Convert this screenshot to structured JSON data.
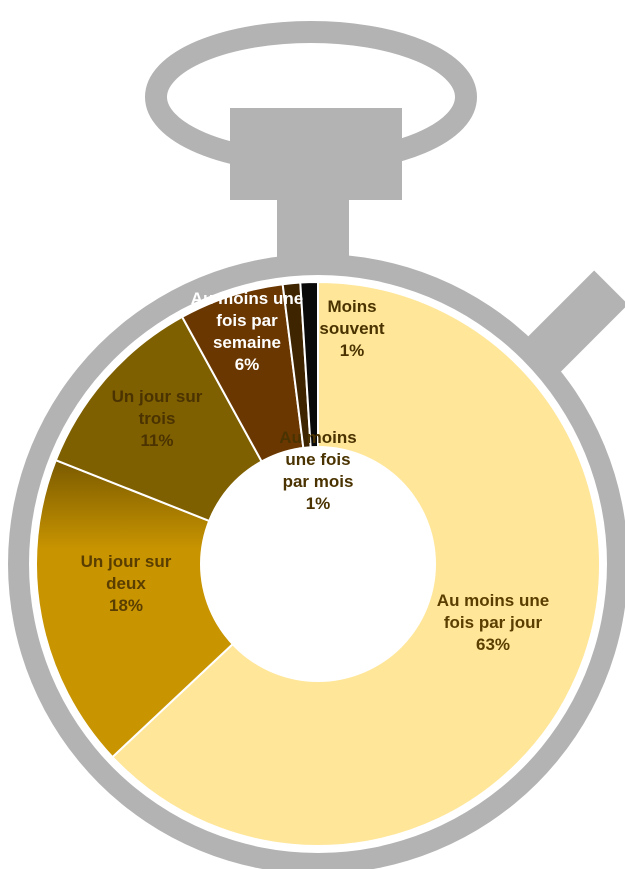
{
  "chart_data": {
    "type": "pie",
    "variant": "donut",
    "slices": [
      {
        "label_lines": [
          "Au moins une",
          "fois par jour"
        ],
        "value": 63,
        "value_text": "63%",
        "color": "#FFE699",
        "text_color": "#5A3E00"
      },
      {
        "label_lines": [
          "Un jour sur",
          "deux"
        ],
        "value": 18,
        "value_text": "18%",
        "color": "#C89400",
        "gradient_top": "#7A5A00",
        "text_color": "#5A3E00"
      },
      {
        "label_lines": [
          "Un jour sur",
          "trois"
        ],
        "value": 11,
        "value_text": "11%",
        "color": "#7F6000",
        "text_color": "#4A3300"
      },
      {
        "label_lines": [
          "Au moins une",
          "fois par",
          "semaine"
        ],
        "value": 6,
        "value_text": "6%",
        "color": "#6B3700",
        "text_color": "#FFFFFF"
      },
      {
        "label_lines": [
          "Au moins",
          "une fois",
          "par mois"
        ],
        "value": 1,
        "value_text": "1%",
        "color": "#3F2400",
        "text_color": "#4A3300"
      },
      {
        "label_lines": [
          "Moins",
          "souvent"
        ],
        "value": 1,
        "value_text": "1%",
        "color": "#0A0A0A",
        "text_color": "#4A3300"
      }
    ],
    "background_shape": "stopwatch",
    "stopwatch_color": "#B3B3B3"
  }
}
